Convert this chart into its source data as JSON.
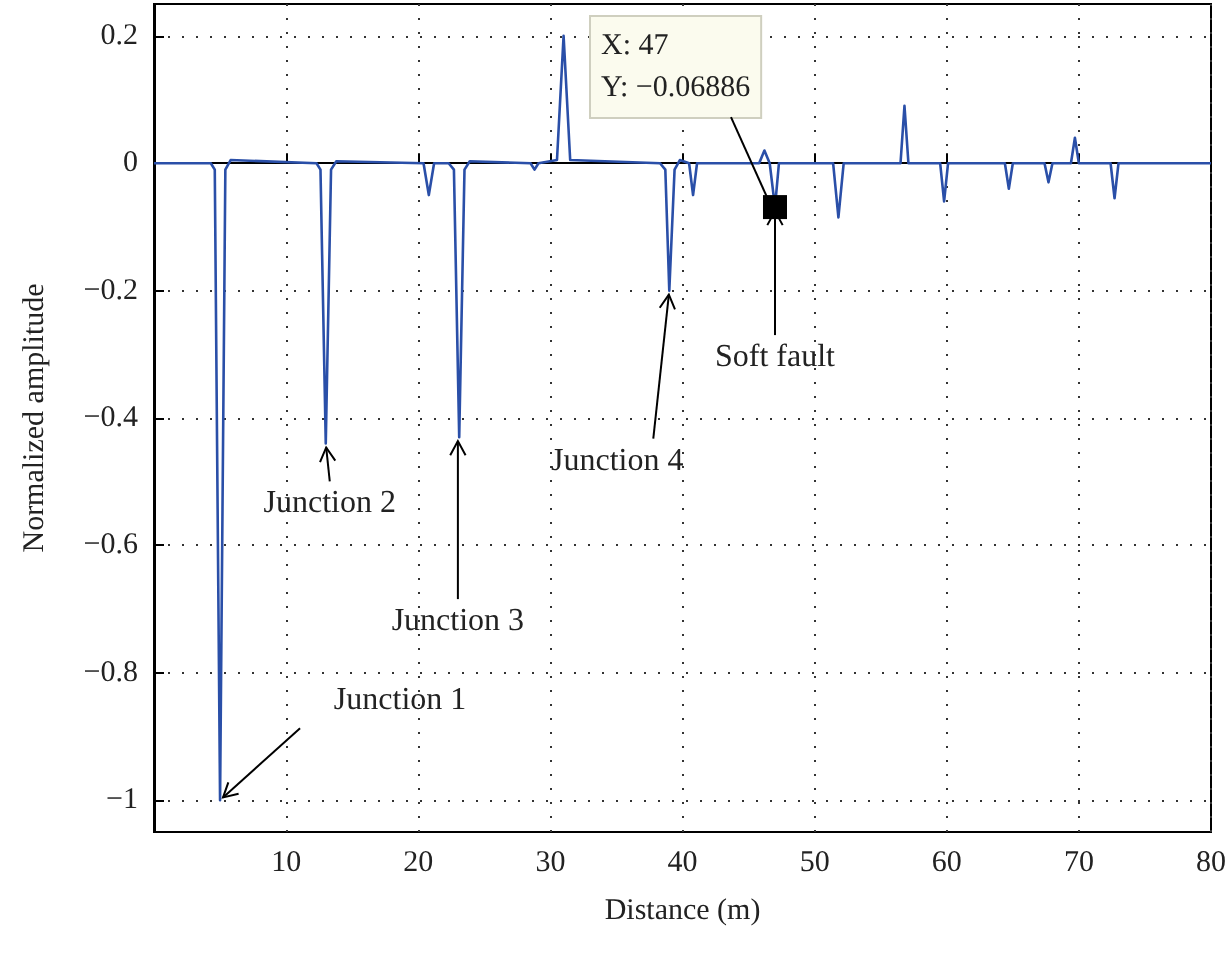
{
  "chart_data": {
    "type": "line",
    "xlabel": "Distance (m)",
    "ylabel": "Normalized amplitude",
    "x": [
      0,
      4.3,
      4.6,
      5,
      5.4,
      5.8,
      12.3,
      12.6,
      13,
      13.4,
      13.8,
      20.4,
      20.8,
      21.2,
      22.3,
      22.7,
      23.1,
      23.5,
      23.9,
      28.5,
      28.8,
      29.1,
      30.5,
      31,
      31.5,
      38.3,
      38.7,
      39,
      39.4,
      39.8,
      40.5,
      40.8,
      41.1,
      45.8,
      46.2,
      46.6,
      47,
      47.3,
      51.4,
      51.8,
      52.2,
      56.5,
      56.8,
      57.1,
      59.5,
      59.8,
      60.1,
      64.4,
      64.7,
      65,
      67.4,
      67.7,
      68,
      69.4,
      69.7,
      70,
      72.4,
      72.7,
      73,
      80
    ],
    "series": [
      {
        "color": "#2a4fa8",
        "values": [
          0,
          0,
          -0.01,
          -1,
          -0.01,
          0.005,
          0,
          -0.01,
          -0.44,
          -0.01,
          0.003,
          0,
          -0.05,
          0,
          0,
          -0.01,
          -0.43,
          -0.01,
          0.003,
          0,
          -0.01,
          0,
          0.005,
          0.2,
          0.005,
          0,
          -0.01,
          -0.2,
          -0.01,
          0.005,
          0,
          -0.05,
          0,
          0,
          0.02,
          0,
          -0.06886,
          0,
          0,
          -0.085,
          0,
          0,
          0.09,
          0,
          0,
          -0.06,
          0,
          0,
          -0.04,
          0,
          0,
          -0.03,
          0,
          0,
          0.04,
          0,
          0,
          -0.055,
          0,
          0
        ]
      }
    ],
    "xlim": [
      0,
      80
    ],
    "xticks": [
      10,
      20,
      30,
      40,
      50,
      60,
      70,
      80
    ],
    "ylim": [
      -1.05,
      0.25
    ],
    "yticks": [
      -1,
      -0.8,
      -0.6,
      -0.4,
      -0.2,
      0,
      0.2
    ],
    "grid": true,
    "marker": "none",
    "line_style": "solid",
    "annotations": [
      {
        "text": "Junction 1",
        "x": 5,
        "y": -1
      },
      {
        "text": "Junction 2",
        "x": 13,
        "y": -0.44
      },
      {
        "text": "Junction 3",
        "x": 23,
        "y": -0.43
      },
      {
        "text": "Junction 4",
        "x": 39,
        "y": -0.2
      },
      {
        "text": "Soft fault",
        "x": 47,
        "y": -0.06886
      },
      {
        "text": "X: 47\nY: −0.06886",
        "x": 47,
        "y": -0.06886
      }
    ]
  }
}
